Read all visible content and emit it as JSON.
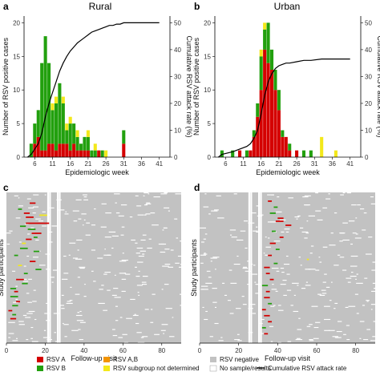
{
  "panels": {
    "a": {
      "letter": "a",
      "title": "Rural"
    },
    "b": {
      "letter": "b",
      "title": "Urban"
    },
    "c": {
      "letter": "c"
    },
    "d": {
      "letter": "d"
    }
  },
  "colors": {
    "rsv_a": "#d40000",
    "rsv_b": "#22a00e",
    "rsv_ab": "#f29400",
    "rsv_undetermined": "#f3e81a",
    "rsv_negative": "#c2c2c2",
    "no_sample": "#ffffff",
    "attack_line": "#000000"
  },
  "legend": {
    "rsv_a": "RSV A",
    "rsv_b": "RSV B",
    "rsv_ab": "RSV A,B",
    "rsv_undetermined": "RSV subgroup not determined",
    "rsv_negative": "RSV negative",
    "no_sample": "No sample/results",
    "attack_rate": "Cumulative RSV attack rate"
  },
  "chart_data": [
    {
      "panel": "a",
      "type": "bar",
      "title": "Rural",
      "xlabel": "Epidemiologic week",
      "ylabel": "Number of RSV positive cases",
      "y2label": "Cumulative RSV attack rate (%)",
      "xticks": [
        6,
        11,
        16,
        21,
        26,
        31,
        36,
        41
      ],
      "yticks": [
        0,
        5,
        10,
        15,
        20
      ],
      "y2ticks": [
        0,
        10,
        20,
        30,
        40,
        50
      ],
      "xlim": [
        3,
        44
      ],
      "ylim": [
        0,
        21
      ],
      "y2lim": [
        0,
        52.5
      ],
      "stack_order": [
        "RSV A",
        "RSV B",
        "RSV A,B",
        "RSV subgroup not determined"
      ],
      "bars": [
        {
          "week": 5,
          "a": 0,
          "b": 2,
          "ab": 0,
          "u": 0
        },
        {
          "week": 6,
          "a": 2,
          "b": 3,
          "ab": 0,
          "u": 0
        },
        {
          "week": 7,
          "a": 3,
          "b": 4,
          "ab": 0,
          "u": 0
        },
        {
          "week": 8,
          "a": 1,
          "b": 13,
          "ab": 0,
          "u": 0
        },
        {
          "week": 9,
          "a": 1,
          "b": 17,
          "ab": 0,
          "u": 0
        },
        {
          "week": 10,
          "a": 2,
          "b": 12,
          "ab": 0,
          "u": 0
        },
        {
          "week": 11,
          "a": 2,
          "b": 5,
          "ab": 0,
          "u": 1
        },
        {
          "week": 12,
          "a": 1,
          "b": 7,
          "ab": 0,
          "u": 1
        },
        {
          "week": 13,
          "a": 2,
          "b": 9,
          "ab": 0,
          "u": 0
        },
        {
          "week": 14,
          "a": 2,
          "b": 6,
          "ab": 0,
          "u": 1
        },
        {
          "week": 15,
          "a": 2,
          "b": 2,
          "ab": 0,
          "u": 1
        },
        {
          "week": 16,
          "a": 1,
          "b": 4,
          "ab": 0,
          "u": 1
        },
        {
          "week": 17,
          "a": 2,
          "b": 3,
          "ab": 0,
          "u": 0
        },
        {
          "week": 18,
          "a": 1,
          "b": 2,
          "ab": 0,
          "u": 1
        },
        {
          "week": 19,
          "a": 1,
          "b": 1,
          "ab": 0,
          "u": 0
        },
        {
          "week": 20,
          "a": 1,
          "b": 2,
          "ab": 0,
          "u": 0
        },
        {
          "week": 21,
          "a": 1,
          "b": 2,
          "ab": 0,
          "u": 1
        },
        {
          "week": 22,
          "a": 0,
          "b": 1,
          "ab": 0,
          "u": 0
        },
        {
          "week": 23,
          "a": 0,
          "b": 1,
          "ab": 0,
          "u": 1
        },
        {
          "week": 24,
          "a": 1,
          "b": 0,
          "ab": 0,
          "u": 0
        },
        {
          "week": 25,
          "a": 0,
          "b": 1,
          "ab": 0,
          "u": 0
        },
        {
          "week": 26,
          "a": 0,
          "b": 0,
          "ab": 0,
          "u": 1
        },
        {
          "week": 31,
          "a": 2,
          "b": 2,
          "ab": 0,
          "u": 0
        }
      ],
      "attack_rate": {
        "weeks": [
          4,
          5,
          6,
          7,
          8,
          9,
          10,
          11,
          12,
          13,
          14,
          15,
          16,
          17,
          18,
          19,
          20,
          21,
          22,
          23,
          24,
          25,
          26,
          27,
          28,
          29,
          30,
          31,
          32,
          41
        ],
        "values": [
          0,
          1,
          3,
          5,
          9,
          15,
          20,
          24,
          28,
          32,
          35,
          37.5,
          39.5,
          41,
          42.5,
          43.5,
          44.5,
          45.5,
          46.5,
          47,
          47.5,
          48,
          48.5,
          49,
          49,
          49.5,
          49.5,
          50,
          50,
          50
        ]
      }
    },
    {
      "panel": "b",
      "type": "bar",
      "title": "Urban",
      "xlabel": "Epidemiologic week",
      "ylabel": "Number of RSV positive cases",
      "y2label": "Cumulative RSV attack rate (%)",
      "xticks": [
        6,
        11,
        16,
        21,
        26,
        31,
        36,
        41
      ],
      "yticks": [
        0,
        5,
        10,
        15,
        20
      ],
      "y2ticks": [
        0,
        10,
        20,
        30,
        40,
        50
      ],
      "xlim": [
        3,
        44
      ],
      "ylim": [
        0,
        21
      ],
      "y2lim": [
        0,
        52.5
      ],
      "stack_order": [
        "RSV A",
        "RSV B",
        "RSV A,B",
        "RSV subgroup not determined"
      ],
      "bars": [
        {
          "week": 5,
          "a": 0,
          "b": 1,
          "ab": 0,
          "u": 0
        },
        {
          "week": 8,
          "a": 0,
          "b": 1,
          "ab": 0,
          "u": 0
        },
        {
          "week": 10,
          "a": 1,
          "b": 0,
          "ab": 0,
          "u": 0
        },
        {
          "week": 12,
          "a": 0,
          "b": 1,
          "ab": 0,
          "u": 0
        },
        {
          "week": 13,
          "a": 1,
          "b": 0,
          "ab": 0,
          "u": 0
        },
        {
          "week": 14,
          "a": 3,
          "b": 1,
          "ab": 0,
          "u": 0
        },
        {
          "week": 15,
          "a": 6,
          "b": 2,
          "ab": 0,
          "u": 0
        },
        {
          "week": 16,
          "a": 10,
          "b": 5,
          "ab": 0,
          "u": 1
        },
        {
          "week": 17,
          "a": 16,
          "b": 3,
          "ab": 0,
          "u": 1
        },
        {
          "week": 18,
          "a": 14,
          "b": 6,
          "ab": 0,
          "u": 0
        },
        {
          "week": 19,
          "a": 13,
          "b": 3,
          "ab": 0,
          "u": 0
        },
        {
          "week": 20,
          "a": 10,
          "b": 3,
          "ab": 0,
          "u": 0
        },
        {
          "week": 21,
          "a": 7,
          "b": 3,
          "ab": 0,
          "u": 0
        },
        {
          "week": 22,
          "a": 3,
          "b": 1,
          "ab": 0,
          "u": 0
        },
        {
          "week": 23,
          "a": 3,
          "b": 0,
          "ab": 0,
          "u": 0
        },
        {
          "week": 24,
          "a": 1,
          "b": 1,
          "ab": 0,
          "u": 0
        },
        {
          "week": 26,
          "a": 1,
          "b": 0,
          "ab": 0,
          "u": 0
        },
        {
          "week": 28,
          "a": 0,
          "b": 1,
          "ab": 0,
          "u": 0
        },
        {
          "week": 30,
          "a": 0,
          "b": 1,
          "ab": 0,
          "u": 0
        },
        {
          "week": 33,
          "a": 0,
          "b": 0,
          "ab": 0,
          "u": 3
        },
        {
          "week": 37,
          "a": 0,
          "b": 0,
          "ab": 0,
          "u": 1
        }
      ],
      "attack_rate": {
        "weeks": [
          4,
          5,
          8,
          10,
          12,
          13,
          14,
          15,
          16,
          17,
          18,
          19,
          20,
          21,
          22,
          23,
          24,
          26,
          28,
          30,
          33,
          37,
          41
        ],
        "values": [
          0,
          1,
          2,
          3,
          4,
          5,
          7,
          10,
          16,
          23,
          28,
          31,
          33,
          34,
          34.5,
          35,
          35,
          35.5,
          36,
          36,
          36.5,
          36.5,
          36.5
        ]
      }
    },
    {
      "panel": "c",
      "type": "heatmap",
      "xlabel": "Follow-up visit",
      "ylabel": "Study participants",
      "xticks": [
        0,
        20,
        40,
        60,
        80
      ],
      "xlim": [
        0,
        90
      ],
      "rows": 150,
      "categories": [
        "RSV A",
        "RSV B",
        "RSV A,B",
        "RSV subgroup not determined",
        "RSV negative",
        "No sample/results"
      ],
      "visits_without_samples": [
        21,
        22,
        26,
        27
      ],
      "positive_runs": [
        {
          "row": 10,
          "start": 12,
          "len": 3,
          "type": "a"
        },
        {
          "row": 16,
          "start": 6,
          "len": 2,
          "type": "b"
        },
        {
          "row": 20,
          "start": 9,
          "len": 3,
          "type": "a"
        },
        {
          "row": 22,
          "start": 17,
          "len": 4,
          "type": "u"
        },
        {
          "row": 24,
          "start": 10,
          "len": 4,
          "type": "a"
        },
        {
          "row": 30,
          "start": 10,
          "len": 12,
          "type": "a"
        },
        {
          "row": 33,
          "start": 7,
          "len": 3,
          "type": "b"
        },
        {
          "row": 36,
          "start": 11,
          "len": 4,
          "type": "b"
        },
        {
          "row": 40,
          "start": 13,
          "len": 5,
          "type": "a"
        },
        {
          "row": 44,
          "start": 14,
          "len": 2,
          "type": "b"
        },
        {
          "row": 46,
          "start": 10,
          "len": 3,
          "type": "a"
        },
        {
          "row": 50,
          "start": 8,
          "len": 2,
          "type": "u"
        },
        {
          "row": 55,
          "start": 7,
          "len": 4,
          "type": "b"
        },
        {
          "row": 58,
          "start": 14,
          "len": 3,
          "type": "b"
        },
        {
          "row": 62,
          "start": 4,
          "len": 2,
          "type": "b"
        },
        {
          "row": 68,
          "start": 12,
          "len": 3,
          "type": "a"
        },
        {
          "row": 72,
          "start": 6,
          "len": 2,
          "type": "u"
        },
        {
          "row": 76,
          "start": 15,
          "len": 3,
          "type": "b"
        },
        {
          "row": 80,
          "start": 9,
          "len": 2,
          "type": "b"
        },
        {
          "row": 86,
          "start": 5,
          "len": 4,
          "type": "a"
        },
        {
          "row": 90,
          "start": 8,
          "len": 3,
          "type": "b"
        },
        {
          "row": 95,
          "start": 2,
          "len": 3,
          "type": "b"
        },
        {
          "row": 98,
          "start": 4,
          "len": 2,
          "type": "a"
        },
        {
          "row": 103,
          "start": 2,
          "len": 4,
          "type": "b"
        },
        {
          "row": 108,
          "start": 5,
          "len": 2,
          "type": "a"
        },
        {
          "row": 112,
          "start": 3,
          "len": 3,
          "type": "b"
        },
        {
          "row": 117,
          "start": 1,
          "len": 2,
          "type": "a"
        },
        {
          "row": 121,
          "start": 3,
          "len": 2,
          "type": "b"
        },
        {
          "row": 125,
          "start": 2,
          "len": 3,
          "type": "a"
        }
      ]
    },
    {
      "panel": "d",
      "type": "heatmap",
      "xlabel": "Follow-up visit",
      "ylabel": "Study participants",
      "xticks": [
        0,
        20,
        40,
        60,
        80
      ],
      "xlim": [
        0,
        90
      ],
      "rows": 150,
      "categories": [
        "RSV A",
        "RSV B",
        "RSV A,B",
        "RSV subgroup not determined",
        "RSV negative",
        "No sample/results"
      ],
      "visits_without_samples": [
        25,
        26,
        30,
        31
      ],
      "positive_runs": [
        {
          "row": 8,
          "start": 35,
          "len": 2,
          "type": "a"
        },
        {
          "row": 14,
          "start": 38,
          "len": 2,
          "type": "b"
        },
        {
          "row": 20,
          "start": 36,
          "len": 3,
          "type": "b"
        },
        {
          "row": 25,
          "start": 40,
          "len": 3,
          "type": "a"
        },
        {
          "row": 28,
          "start": 39,
          "len": 4,
          "type": "a"
        },
        {
          "row": 32,
          "start": 44,
          "len": 3,
          "type": "a"
        },
        {
          "row": 38,
          "start": 37,
          "len": 2,
          "type": "b"
        },
        {
          "row": 44,
          "start": 41,
          "len": 2,
          "type": "a"
        },
        {
          "row": 50,
          "start": 36,
          "len": 3,
          "type": "a"
        },
        {
          "row": 56,
          "start": 39,
          "len": 2,
          "type": "b"
        },
        {
          "row": 62,
          "start": 35,
          "len": 2,
          "type": "a"
        },
        {
          "row": 66,
          "start": 55,
          "len": 1,
          "type": "u"
        },
        {
          "row": 70,
          "start": 38,
          "len": 2,
          "type": "b"
        },
        {
          "row": 74,
          "start": 33,
          "len": 3,
          "type": "a"
        },
        {
          "row": 80,
          "start": 34,
          "len": 2,
          "type": "a"
        },
        {
          "row": 86,
          "start": 36,
          "len": 2,
          "type": "a"
        },
        {
          "row": 92,
          "start": 32,
          "len": 3,
          "type": "b"
        },
        {
          "row": 98,
          "start": 34,
          "len": 2,
          "type": "a"
        },
        {
          "row": 104,
          "start": 33,
          "len": 3,
          "type": "a"
        },
        {
          "row": 110,
          "start": 35,
          "len": 2,
          "type": "b"
        },
        {
          "row": 116,
          "start": 32,
          "len": 2,
          "type": "a"
        },
        {
          "row": 122,
          "start": 33,
          "len": 3,
          "type": "a"
        },
        {
          "row": 128,
          "start": 35,
          "len": 2,
          "type": "a"
        },
        {
          "row": 134,
          "start": 32,
          "len": 2,
          "type": "b"
        },
        {
          "row": 140,
          "start": 33,
          "len": 2,
          "type": "a"
        }
      ]
    }
  ]
}
